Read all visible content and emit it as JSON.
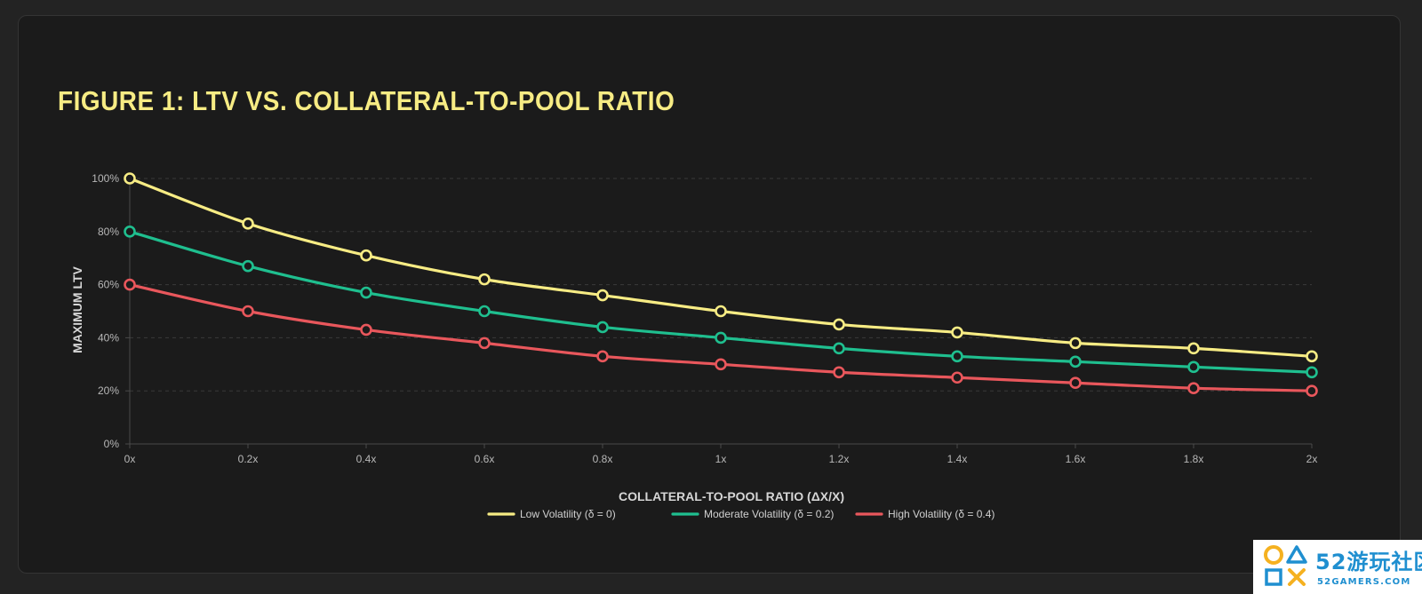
{
  "chart_data": {
    "type": "line",
    "title": "FIGURE 1: LTV VS. COLLATERAL-TO-POOL RATIO",
    "xlabel": "COLLATERAL-TO-POOL RATIO (ΔX/X)",
    "ylabel": "MAXIMUM LTV",
    "x": [
      0,
      0.2,
      0.4,
      0.6,
      0.8,
      1.0,
      1.2,
      1.4,
      1.6,
      1.8,
      2.0
    ],
    "x_tick_labels": [
      "0x",
      "0.2x",
      "0.4x",
      "0.6x",
      "0.8x",
      "1x",
      "1.2x",
      "1.4x",
      "1.6x",
      "1.8x",
      "2x"
    ],
    "y_ticks": [
      0,
      20,
      40,
      60,
      80,
      100
    ],
    "y_tick_labels": [
      "0%",
      "20%",
      "40%",
      "60%",
      "80%",
      "100%"
    ],
    "xlim": [
      0,
      2
    ],
    "ylim": [
      0,
      100
    ],
    "grid": "horizontal dashed",
    "legend_position": "bottom-center",
    "series": [
      {
        "name": "Low Volatility (δ = 0)",
        "color": "#f7ec84",
        "values": [
          100,
          83,
          71,
          62,
          56,
          50,
          45,
          42,
          38,
          36,
          33
        ]
      },
      {
        "name": "Moderate Volatility (δ = 0.2)",
        "color": "#1fbf8f",
        "values": [
          80,
          67,
          57,
          50,
          44,
          40,
          36,
          33,
          31,
          29,
          27
        ]
      },
      {
        "name": "High Volatility (δ = 0.4)",
        "color": "#e9575c",
        "values": [
          60,
          50,
          43,
          38,
          33,
          30,
          27,
          25,
          23,
          21,
          20
        ]
      }
    ]
  },
  "watermark": {
    "title": "52游玩社区",
    "subtitle": "52GAMERS.COM",
    "logo_icon": "gamepad-shapes-icon"
  }
}
